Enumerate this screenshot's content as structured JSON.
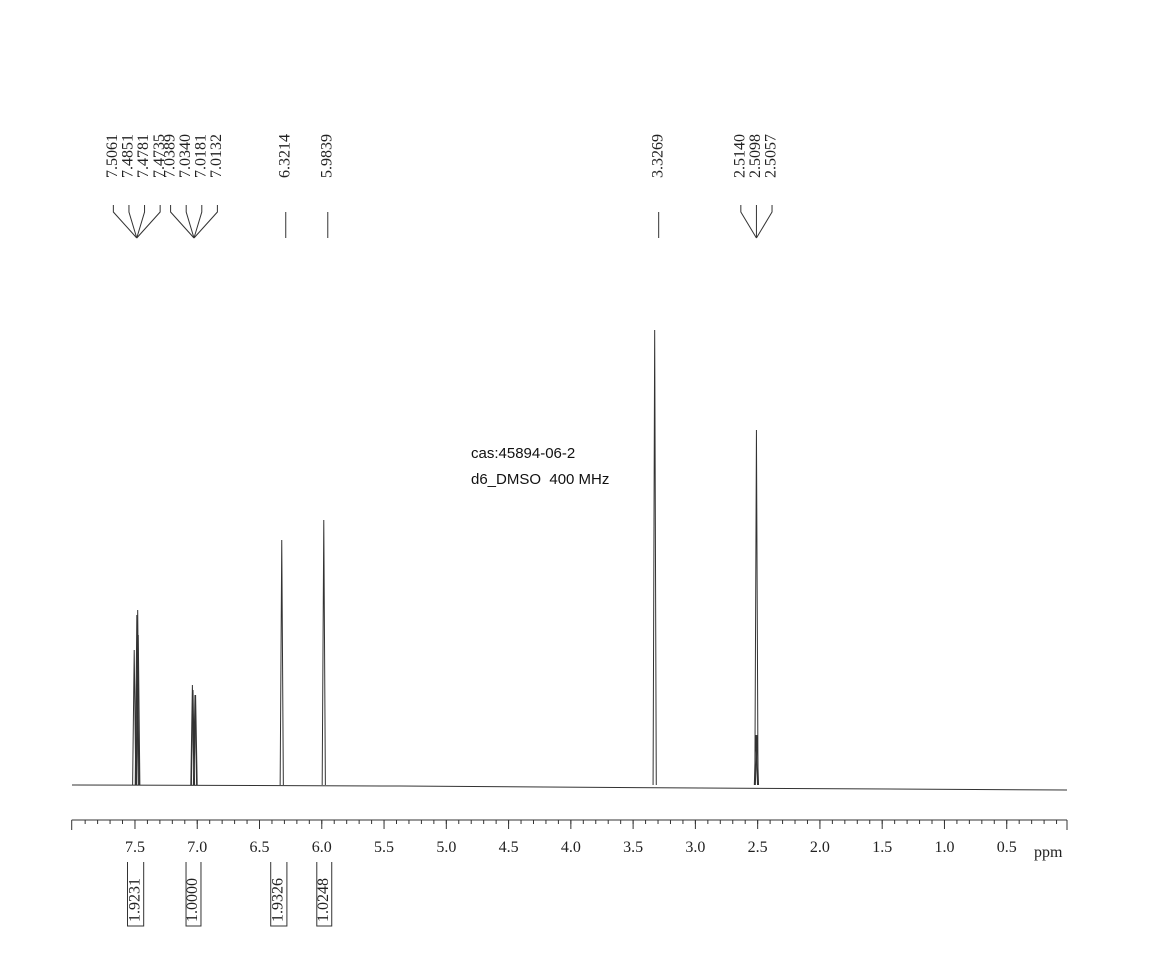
{
  "chart_data": {
    "type": "nmr",
    "x_label": "ppm",
    "annotations": [
      "cas:45894-06-2",
      "d6_DMSO  400 MHz"
    ],
    "xlim": [
      8.0,
      0.0
    ],
    "ylim": [
      0,
      100
    ],
    "minor_tick_step": 0.1,
    "xticks": [
      7.5,
      {
        "value": 7.0,
        "label": "7.0"
      },
      6.5,
      {
        "value": 6.0,
        "label": "6.0"
      },
      5.5,
      {
        "value": 5.0,
        "label": "5.0"
      },
      4.5,
      {
        "value": 4.0,
        "label": "4.0"
      },
      3.5,
      {
        "value": 3.0,
        "label": "3.0"
      },
      2.5,
      {
        "value": 2.0,
        "label": "2.0"
      },
      1.5,
      {
        "value": 1.0,
        "label": "1.0"
      },
      0.5
    ],
    "peaks": {
      "x": [
        7.5061,
        7.4851,
        7.4781,
        7.4735,
        7.0389,
        7.034,
        7.0181,
        7.0132,
        6.3214,
        5.9839,
        3.3269,
        2.514,
        2.5098,
        2.5057
      ],
      "x_labels": [
        "7.5061",
        "7.4851",
        "7.4781",
        "7.4735",
        "7.0389",
        "7.0340",
        "7.0181",
        "7.0132",
        "6.3214",
        "5.9839",
        "3.3269",
        "2.5140",
        "2.5098",
        "2.5057"
      ],
      "values": [
        27,
        34,
        35,
        30,
        20,
        19,
        18,
        18,
        49,
        53,
        91,
        10,
        71,
        10
      ],
      "color": "#444444"
    },
    "integrals": {
      "values": [
        1.9231,
        1.0,
        1.9326,
        1.0248
      ],
      "value_labels": [
        "1.9231",
        "1.0000",
        "1.9326",
        "1.0248"
      ],
      "ranges": [
        [
          7.56,
          7.43
        ],
        [
          7.09,
          6.97
        ],
        [
          6.41,
          6.28
        ],
        [
          6.04,
          5.92
        ]
      ]
    }
  }
}
